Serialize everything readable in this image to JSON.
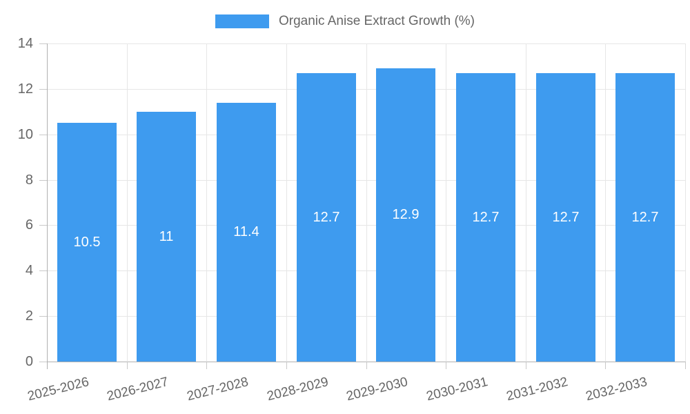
{
  "chart_data": {
    "type": "bar",
    "title": "Organic Anise Extract Growth (%)",
    "legend": {
      "position": "top",
      "label": "Organic Anise Extract Growth (%)"
    },
    "categories": [
      "2025-2026",
      "2026-2027",
      "2027-2028",
      "2028-2029",
      "2029-2030",
      "2030-2031",
      "2031-2032",
      "2032-2033"
    ],
    "values": [
      10.5,
      11,
      11.4,
      12.7,
      12.9,
      12.7,
      12.7,
      12.7
    ],
    "value_labels": [
      "10.5",
      "11",
      "11.4",
      "12.7",
      "12.9",
      "12.7",
      "12.7",
      "12.7"
    ],
    "xlabel": "",
    "ylabel": "",
    "ylim": [
      0,
      14
    ],
    "yticks": [
      0,
      2,
      4,
      6,
      8,
      10,
      12,
      14
    ],
    "grid": "on",
    "colors": {
      "bar": "#3e9bef",
      "value_label": "#ffffff",
      "axis_text": "#666666",
      "grid_line": "#e6e6e6",
      "axis_line": "#b0b0b0",
      "tick_mark": "#c9c9c9",
      "background": "#ffffff"
    }
  }
}
